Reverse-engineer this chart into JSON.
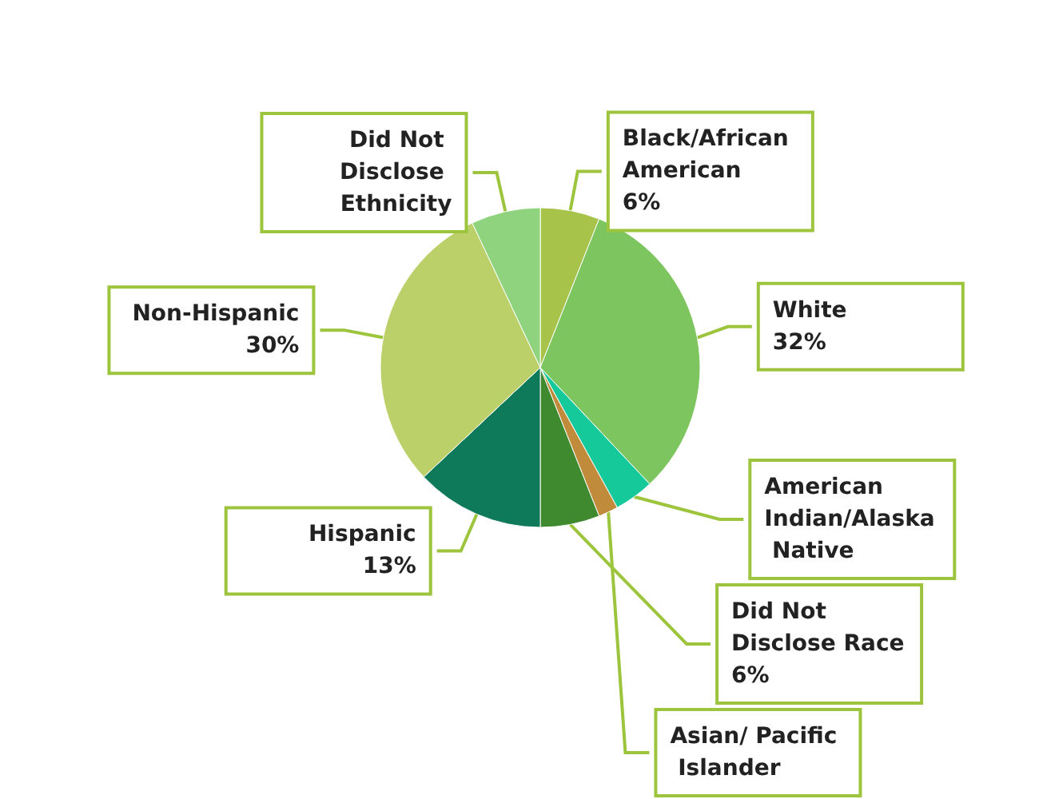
{
  "chart_data": {
    "type": "pie",
    "categories": [
      "Black/African American",
      "White",
      "American Indian/Alaska Native",
      "Asian/ Pacific Islander",
      "Did Not Disclose Race",
      "Hispanic",
      "Non-Hispanic",
      "Did Not Disclose Ethnicity"
    ],
    "values": [
      6,
      32,
      4,
      2,
      6,
      13,
      30,
      7
    ],
    "value_labels": [
      "6%",
      "32%",
      null,
      null,
      "6%",
      "13%",
      "30%",
      null
    ],
    "colors": [
      "#a8c34a",
      "#7dc55e",
      "#16c99a",
      "#c08b3a",
      "#3f8a2f",
      "#0e7a5a",
      "#bcd06a",
      "#8fd37e"
    ],
    "legend": false
  }
}
